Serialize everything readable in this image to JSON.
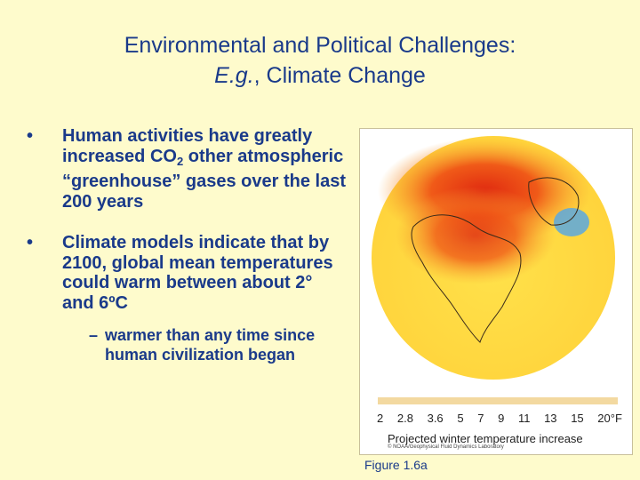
{
  "title": {
    "line1": "Environmental and Political Challenges:",
    "line2_em": "E.g.",
    "line2_rest": ", Climate Change"
  },
  "bullets": {
    "b1_a": "Human activities have greatly increased CO",
    "b1_sub": "2",
    "b1_b": " other atmospheric “greenhouse” gases over the last 200 years",
    "b2": "Climate models indicate that by 2100, global mean temperatures could warm between about 2° and 6ºC",
    "sub1": "warmer than any time since human civilization began",
    "dot": "•",
    "dash": "–"
  },
  "figure": {
    "scale_labels": [
      "2",
      "2.8",
      "3.6",
      "5",
      "7",
      "9",
      "11",
      "13",
      "15",
      "20°F"
    ],
    "scale_title": "Projected winter temperature increase",
    "credit": "© NOAA/Geophysical Fluid Dynamics Laboratory",
    "caption": "Figure 1.6a"
  }
}
